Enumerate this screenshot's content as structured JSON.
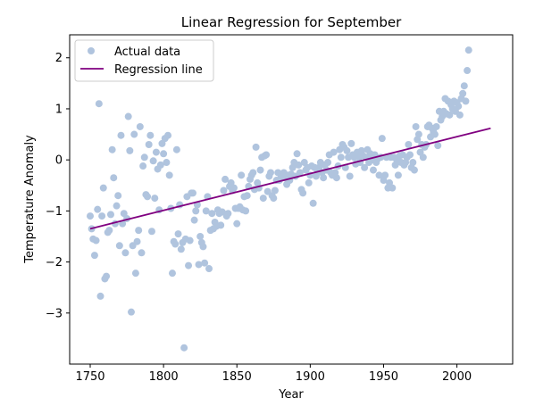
{
  "chart_data": {
    "type": "scatter",
    "title": "Linear Regression for September",
    "xlabel": "Year",
    "ylabel": "Temperature Anomaly",
    "xlim": [
      1736,
      2038
    ],
    "ylim": [
      -4.0,
      2.45
    ],
    "xticks": [
      1750,
      1800,
      1850,
      1900,
      1950,
      2000
    ],
    "xtick_labels": [
      "1750",
      "1800",
      "1850",
      "1900",
      "1950",
      "2000"
    ],
    "yticks": [
      -3,
      -2,
      -1,
      0,
      1,
      2
    ],
    "ytick_labels": [
      "−3",
      "−2",
      "−1",
      "0",
      "1",
      "2"
    ],
    "grid": false,
    "legend_position": "upper-left",
    "colors": {
      "scatter": "#b0c4de",
      "line": "#800080"
    },
    "series": [
      {
        "name": "Actual data",
        "kind": "scatter",
        "points": [
          [
            1750,
            -1.1
          ],
          [
            1751,
            -1.35
          ],
          [
            1752,
            -1.55
          ],
          [
            1753,
            -1.87
          ],
          [
            1754,
            -1.58
          ],
          [
            1755,
            -0.97
          ],
          [
            1756,
            1.1
          ],
          [
            1757,
            -2.67
          ],
          [
            1758,
            -1.1
          ],
          [
            1759,
            -0.55
          ],
          [
            1760,
            -2.33
          ],
          [
            1761,
            -2.28
          ],
          [
            1762,
            -1.42
          ],
          [
            1763,
            -1.38
          ],
          [
            1764,
            -1.07
          ],
          [
            1765,
            0.2
          ],
          [
            1766,
            -0.35
          ],
          [
            1767,
            -1.25
          ],
          [
            1768,
            -0.9
          ],
          [
            1769,
            -0.7
          ],
          [
            1770,
            -1.68
          ],
          [
            1771,
            0.48
          ],
          [
            1772,
            -1.25
          ],
          [
            1773,
            -1.05
          ],
          [
            1774,
            -1.82
          ],
          [
            1775,
            -1.15
          ],
          [
            1776,
            0.85
          ],
          [
            1777,
            0.18
          ],
          [
            1778,
            -2.98
          ],
          [
            1779,
            -1.68
          ],
          [
            1780,
            0.5
          ],
          [
            1781,
            -2.22
          ],
          [
            1782,
            -1.6
          ],
          [
            1783,
            -1.38
          ],
          [
            1784,
            0.65
          ],
          [
            1785,
            -1.82
          ],
          [
            1786,
            -0.12
          ],
          [
            1787,
            0.05
          ],
          [
            1788,
            -0.68
          ],
          [
            1789,
            -0.72
          ],
          [
            1790,
            0.3
          ],
          [
            1791,
            0.48
          ],
          [
            1792,
            -1.4
          ],
          [
            1793,
            -0.02
          ],
          [
            1794,
            -0.75
          ],
          [
            1795,
            0.15
          ],
          [
            1796,
            -0.18
          ],
          [
            1797,
            -0.98
          ],
          [
            1798,
            -0.1
          ],
          [
            1799,
            0.32
          ],
          [
            1800,
            0.12
          ],
          [
            1801,
            0.42
          ],
          [
            1802,
            -0.05
          ],
          [
            1803,
            0.48
          ],
          [
            1804,
            -0.3
          ],
          [
            1805,
            -0.95
          ],
          [
            1806,
            -2.22
          ],
          [
            1807,
            -1.6
          ],
          [
            1808,
            -1.65
          ],
          [
            1809,
            0.2
          ],
          [
            1810,
            -1.45
          ],
          [
            1811,
            -0.88
          ],
          [
            1812,
            -1.75
          ],
          [
            1813,
            -1.62
          ],
          [
            1814,
            -3.68
          ],
          [
            1815,
            -1.55
          ],
          [
            1816,
            -0.72
          ],
          [
            1817,
            -2.07
          ],
          [
            1818,
            -1.58
          ],
          [
            1819,
            -0.65
          ],
          [
            1820,
            -0.65
          ],
          [
            1821,
            -1.18
          ],
          [
            1822,
            -1.0
          ],
          [
            1823,
            -0.88
          ],
          [
            1824,
            -2.05
          ],
          [
            1825,
            -1.5
          ],
          [
            1826,
            -1.62
          ],
          [
            1827,
            -1.7
          ],
          [
            1828,
            -2.02
          ],
          [
            1829,
            -1.0
          ],
          [
            1830,
            -0.72
          ],
          [
            1831,
            -2.13
          ],
          [
            1832,
            -1.38
          ],
          [
            1833,
            -1.05
          ],
          [
            1834,
            -1.35
          ],
          [
            1835,
            -1.22
          ],
          [
            1836,
            -1.3
          ],
          [
            1837,
            -0.98
          ],
          [
            1838,
            -1.05
          ],
          [
            1839,
            -1.28
          ],
          [
            1840,
            -1.02
          ],
          [
            1841,
            -0.6
          ],
          [
            1842,
            -0.38
          ],
          [
            1843,
            -1.1
          ],
          [
            1844,
            -1.05
          ],
          [
            1845,
            -0.52
          ],
          [
            1846,
            -0.45
          ],
          [
            1847,
            -0.6
          ],
          [
            1848,
            -0.55
          ],
          [
            1849,
            -0.95
          ],
          [
            1850,
            -1.25
          ],
          [
            1851,
            -0.95
          ],
          [
            1852,
            -0.92
          ],
          [
            1853,
            -0.3
          ],
          [
            1854,
            -0.98
          ],
          [
            1855,
            -0.72
          ],
          [
            1856,
            -1.0
          ],
          [
            1857,
            -0.7
          ],
          [
            1858,
            -0.52
          ],
          [
            1859,
            -0.38
          ],
          [
            1860,
            -0.3
          ],
          [
            1861,
            -0.25
          ],
          [
            1862,
            -0.58
          ],
          [
            1863,
            0.25
          ],
          [
            1864,
            -0.45
          ],
          [
            1865,
            -0.55
          ],
          [
            1866,
            -0.2
          ],
          [
            1867,
            0.05
          ],
          [
            1868,
            -0.75
          ],
          [
            1869,
            0.08
          ],
          [
            1870,
            0.1
          ],
          [
            1871,
            -0.62
          ],
          [
            1872,
            -0.32
          ],
          [
            1873,
            -0.25
          ],
          [
            1874,
            -0.7
          ],
          [
            1875,
            -0.75
          ],
          [
            1876,
            -0.6
          ],
          [
            1877,
            -0.4
          ],
          [
            1878,
            -0.25
          ],
          [
            1879,
            -0.4
          ],
          [
            1880,
            -0.35
          ],
          [
            1881,
            -0.3
          ],
          [
            1882,
            -0.25
          ],
          [
            1883,
            -0.35
          ],
          [
            1884,
            -0.48
          ],
          [
            1885,
            -0.3
          ],
          [
            1886,
            -0.4
          ],
          [
            1887,
            -0.28
          ],
          [
            1888,
            -0.15
          ],
          [
            1889,
            -0.05
          ],
          [
            1890,
            -0.32
          ],
          [
            1891,
            0.12
          ],
          [
            1892,
            -0.1
          ],
          [
            1893,
            -0.25
          ],
          [
            1894,
            -0.58
          ],
          [
            1895,
            -0.65
          ],
          [
            1896,
            -0.05
          ],
          [
            1897,
            -0.2
          ],
          [
            1898,
            -0.15
          ],
          [
            1899,
            -0.45
          ],
          [
            1900,
            -0.3
          ],
          [
            1901,
            -0.12
          ],
          [
            1902,
            -0.85
          ],
          [
            1903,
            -0.15
          ],
          [
            1904,
            -0.32
          ],
          [
            1905,
            -0.25
          ],
          [
            1906,
            -0.15
          ],
          [
            1907,
            -0.05
          ],
          [
            1908,
            -0.25
          ],
          [
            1909,
            -0.35
          ],
          [
            1910,
            -0.1
          ],
          [
            1911,
            -0.2
          ],
          [
            1912,
            -0.05
          ],
          [
            1913,
            0.1
          ],
          [
            1914,
            -0.25
          ],
          [
            1915,
            -0.3
          ],
          [
            1916,
            0.15
          ],
          [
            1917,
            -0.25
          ],
          [
            1918,
            -0.35
          ],
          [
            1919,
            -0.12
          ],
          [
            1920,
            0.2
          ],
          [
            1921,
            0.05
          ],
          [
            1922,
            0.3
          ],
          [
            1923,
            0.25
          ],
          [
            1924,
            -0.15
          ],
          [
            1925,
            0.18
          ],
          [
            1926,
            0.05
          ],
          [
            1927,
            -0.32
          ],
          [
            1928,
            0.32
          ],
          [
            1929,
            0.1
          ],
          [
            1930,
            0.05
          ],
          [
            1931,
            -0.08
          ],
          [
            1932,
            0.15
          ],
          [
            1933,
            0.05
          ],
          [
            1934,
            -0.05
          ],
          [
            1935,
            0.18
          ],
          [
            1936,
            0.08
          ],
          [
            1937,
            -0.15
          ],
          [
            1938,
            0.05
          ],
          [
            1939,
            0.2
          ],
          [
            1940,
            -0.05
          ],
          [
            1941,
            0.12
          ],
          [
            1942,
            0.0
          ],
          [
            1943,
            -0.2
          ],
          [
            1944,
            0.1
          ],
          [
            1945,
            -0.05
          ],
          [
            1946,
            0.02
          ],
          [
            1947,
            -0.3
          ],
          [
            1948,
            0.05
          ],
          [
            1949,
            0.42
          ],
          [
            1950,
            -0.4
          ],
          [
            1951,
            -0.3
          ],
          [
            1952,
            0.05
          ],
          [
            1953,
            -0.55
          ],
          [
            1954,
            -0.45
          ],
          [
            1955,
            0.05
          ],
          [
            1956,
            -0.55
          ],
          [
            1957,
            0.05
          ],
          [
            1958,
            -0.1
          ],
          [
            1959,
            0.0
          ],
          [
            1960,
            -0.3
          ],
          [
            1961,
            0.08
          ],
          [
            1962,
            -0.05
          ],
          [
            1963,
            0.1
          ],
          [
            1964,
            -0.1
          ],
          [
            1965,
            -0.05
          ],
          [
            1966,
            0.05
          ],
          [
            1967,
            0.3
          ],
          [
            1968,
            0.1
          ],
          [
            1969,
            -0.15
          ],
          [
            1970,
            -0.05
          ],
          [
            1971,
            -0.2
          ],
          [
            1972,
            0.65
          ],
          [
            1973,
            0.4
          ],
          [
            1974,
            0.5
          ],
          [
            1975,
            0.15
          ],
          [
            1976,
            0.3
          ],
          [
            1977,
            0.05
          ],
          [
            1978,
            0.25
          ],
          [
            1979,
            0.3
          ],
          [
            1980,
            0.65
          ],
          [
            1981,
            0.68
          ],
          [
            1982,
            0.45
          ],
          [
            1983,
            0.62
          ],
          [
            1984,
            0.55
          ],
          [
            1985,
            0.5
          ],
          [
            1986,
            0.65
          ],
          [
            1987,
            0.28
          ],
          [
            1988,
            0.95
          ],
          [
            1989,
            0.78
          ],
          [
            1990,
            0.85
          ],
          [
            1991,
            0.95
          ],
          [
            1992,
            1.2
          ],
          [
            1993,
            0.9
          ],
          [
            1994,
            1.15
          ],
          [
            1995,
            0.88
          ],
          [
            1996,
            1.08
          ],
          [
            1997,
            1.0
          ],
          [
            1998,
            1.15
          ],
          [
            1999,
            0.95
          ],
          [
            2000,
            1.12
          ],
          [
            2001,
            1.05
          ],
          [
            2002,
            0.88
          ],
          [
            2003,
            1.2
          ],
          [
            2004,
            1.3
          ],
          [
            2005,
            1.45
          ],
          [
            2006,
            1.15
          ],
          [
            2007,
            1.75
          ],
          [
            2008,
            2.15
          ]
        ]
      },
      {
        "name": "Regression line",
        "kind": "line",
        "points": [
          [
            1750,
            -1.35
          ],
          [
            2023,
            0.62
          ]
        ]
      }
    ]
  }
}
